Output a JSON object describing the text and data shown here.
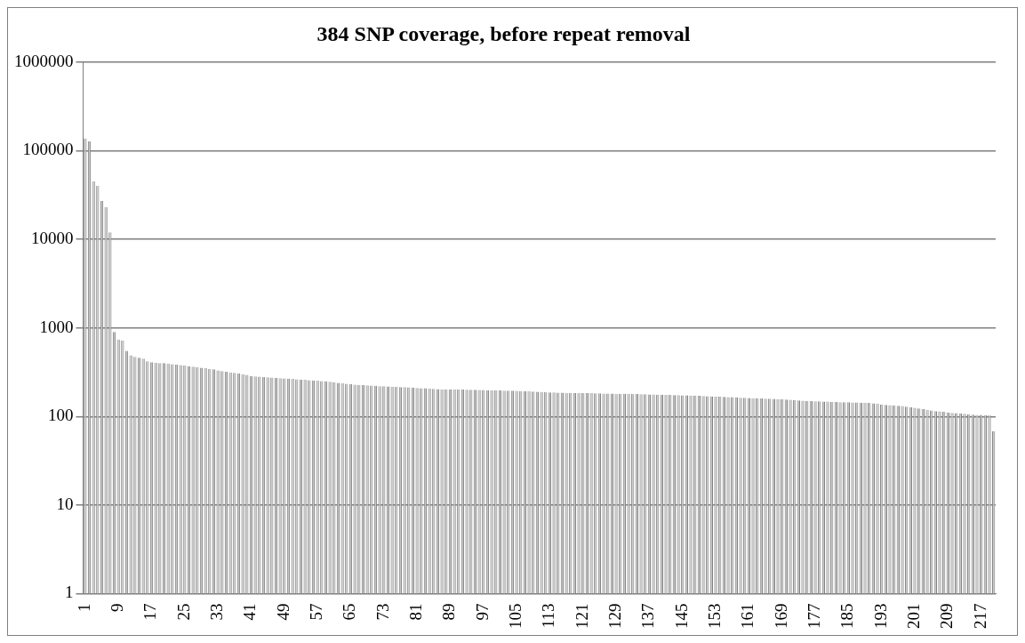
{
  "chart_data": {
    "type": "bar",
    "title": "384 SNP coverage, before repeat removal",
    "categories": [
      "1",
      null,
      null,
      null,
      null,
      null,
      null,
      null,
      "9",
      null,
      null,
      null,
      null,
      null,
      null,
      null,
      "17",
      null,
      null,
      null,
      null,
      null,
      null,
      null,
      "25",
      null,
      null,
      null,
      null,
      null,
      null,
      null,
      "33",
      null,
      null,
      null,
      null,
      null,
      null,
      null,
      "41",
      null,
      null,
      null,
      null,
      null,
      null,
      null,
      "49",
      null,
      null,
      null,
      null,
      null,
      null,
      null,
      "57",
      null,
      null,
      null,
      null,
      null,
      null,
      null,
      "65",
      null,
      null,
      null,
      null,
      null,
      null,
      null,
      "73",
      null,
      null,
      null,
      null,
      null,
      null,
      null,
      "81",
      null,
      null,
      null,
      null,
      null,
      null,
      null,
      "89",
      null,
      null,
      null,
      null,
      null,
      null,
      null,
      "97",
      null,
      null,
      null,
      null,
      null,
      null,
      null,
      "105",
      null,
      null,
      null,
      null,
      null,
      null,
      null,
      "113",
      null,
      null,
      null,
      null,
      null,
      null,
      null,
      "121",
      null,
      null,
      null,
      null,
      null,
      null,
      null,
      "129",
      null,
      null,
      null,
      null,
      null,
      null,
      null,
      "137",
      null,
      null,
      null,
      null,
      null,
      null,
      null,
      "145",
      null,
      null,
      null,
      null,
      null,
      null,
      null,
      "153",
      null,
      null,
      null,
      null,
      null,
      null,
      null,
      "161",
      null,
      null,
      null,
      null,
      null,
      null,
      null,
      "169",
      null,
      null,
      null,
      null,
      null,
      null,
      null,
      "177",
      null,
      null,
      null,
      null,
      null,
      null,
      null,
      "185",
      null,
      null,
      null,
      null,
      null,
      null,
      null,
      "193",
      null,
      null,
      null,
      null,
      null,
      null,
      null,
      "201",
      null,
      null,
      null,
      null,
      null,
      null,
      null,
      "209",
      null,
      null,
      null,
      null,
      null,
      null,
      null,
      "217",
      null,
      null,
      null
    ],
    "values": [
      137000,
      127000,
      45000,
      40000,
      27000,
      23000,
      12000,
      900,
      740,
      720,
      550,
      490,
      470,
      460,
      450,
      420,
      410,
      405,
      400,
      400,
      395,
      390,
      385,
      380,
      375,
      370,
      365,
      360,
      355,
      350,
      345,
      340,
      330,
      325,
      320,
      315,
      310,
      305,
      300,
      295,
      285,
      283,
      281,
      279,
      277,
      275,
      273,
      271,
      269,
      267,
      265,
      263,
      261,
      259,
      257,
      255,
      253,
      251,
      249,
      246,
      243,
      240,
      237,
      234,
      231,
      229,
      227,
      226,
      225,
      224,
      222,
      220,
      219,
      218,
      217,
      216,
      215,
      214,
      213,
      212,
      210,
      209,
      208,
      206,
      205,
      204,
      203,
      203,
      202,
      202,
      201,
      201,
      200,
      200,
      200,
      199,
      199,
      198,
      198,
      197,
      197,
      196,
      196,
      195,
      194,
      193,
      193,
      192,
      191,
      190,
      189,
      188,
      187,
      187,
      186,
      186,
      185,
      185,
      184,
      184,
      183,
      183,
      183,
      182,
      182,
      181,
      181,
      181,
      180,
      180,
      180,
      180,
      179,
      179,
      178,
      178,
      177,
      177,
      176,
      176,
      175,
      175,
      174,
      174,
      173,
      173,
      172,
      172,
      171,
      170,
      169,
      168,
      167,
      167,
      166,
      165,
      165,
      164,
      163,
      163,
      162,
      161,
      161,
      160,
      159,
      159,
      158,
      157,
      156,
      155,
      154,
      153,
      152,
      151,
      150,
      149,
      148,
      148,
      147,
      147,
      146,
      146,
      145,
      145,
      145,
      144,
      144,
      143,
      143,
      142,
      141,
      140,
      136,
      135,
      134,
      133,
      132,
      131,
      129,
      127,
      125,
      123,
      121,
      119,
      117,
      115,
      114,
      113,
      111,
      110,
      109,
      108,
      107,
      106,
      105,
      104,
      104,
      103,
      103,
      68
    ],
    "color": "#c8c8c8",
    "log": "y",
    "ylim": [
      1,
      1000000
    ],
    "yticks": [
      1,
      10,
      100,
      1000,
      10000,
      100000,
      1000000
    ],
    "grid": "y"
  }
}
